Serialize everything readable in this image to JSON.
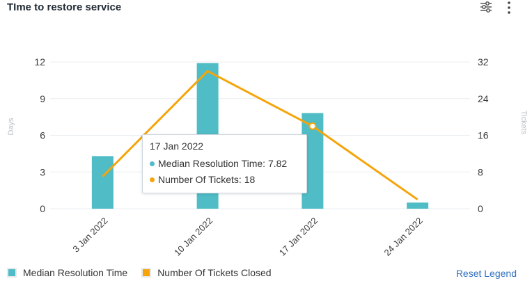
{
  "title": "TIme to restore service",
  "icons": {
    "filter": "filter-sliders-icon",
    "more": "more-vertical-icon"
  },
  "colors": {
    "bar": "#4fbcc6",
    "line": "#f5a50b",
    "grid": "#e9edf0",
    "axis_text": "#3b3b3b"
  },
  "chart_data": {
    "type": "bar",
    "categories": [
      "3 Jan 2022",
      "10 Jan 2022",
      "17 Jan 2022",
      "24 Jan 2022"
    ],
    "series": [
      {
        "name": "Median Resolution Time",
        "type": "bar",
        "axis": "left",
        "values": [
          4.3,
          11.9,
          7.82,
          0.5
        ]
      },
      {
        "name": "Number Of Tickets Closed",
        "type": "line",
        "axis": "right",
        "values": [
          7,
          30,
          18,
          2
        ]
      }
    ],
    "ylabel": "Days",
    "y2label": "Tickets",
    "ylim": [
      0,
      12
    ],
    "y2lim": [
      0,
      32
    ],
    "yticks": [
      "0",
      "3",
      "6",
      "9",
      "12"
    ],
    "y2ticks": [
      "0",
      "8",
      "16",
      "24",
      "32"
    ],
    "grid": true,
    "legend": "bottom-left"
  },
  "tooltip": {
    "date": "17 Jan 2022",
    "rows": [
      {
        "label": "Median Resolution Time: 7.82"
      },
      {
        "label": "Number Of Tickets: 18"
      }
    ]
  },
  "legend": {
    "items": [
      {
        "label": "Median Resolution Time"
      },
      {
        "label": "Number Of Tickets Closed"
      }
    ],
    "reset": "Reset Legend"
  }
}
